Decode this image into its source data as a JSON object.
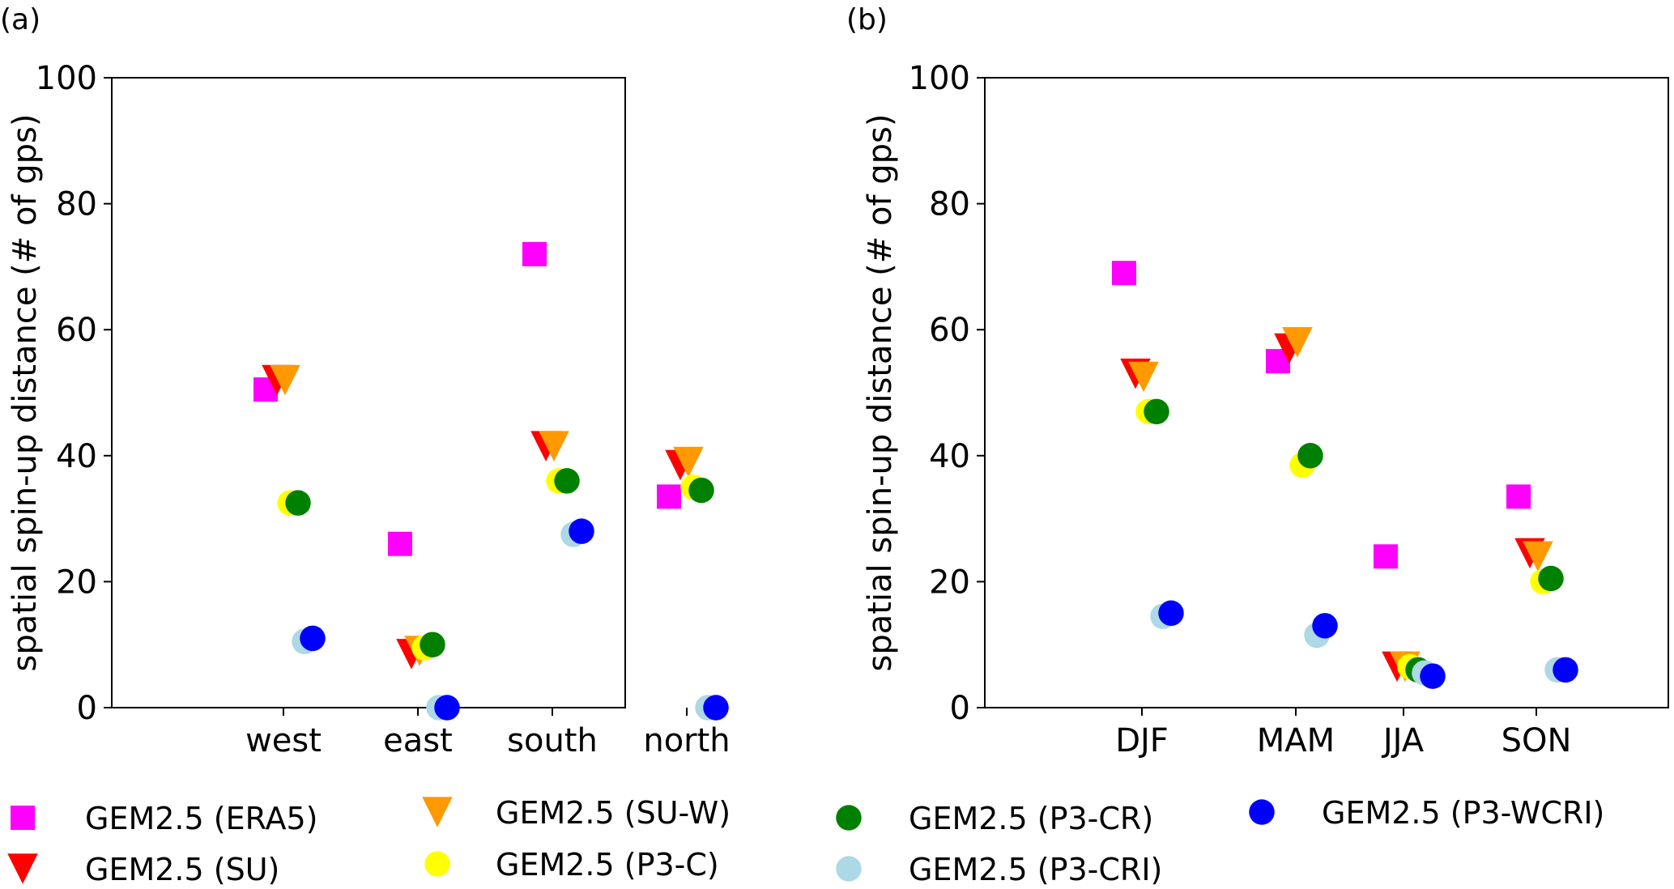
{
  "figure": {
    "panels": [
      {
        "panel_label": "(a)",
        "categories": [
          "west",
          "east",
          "south",
          "north"
        ]
      },
      {
        "panel_label": "(b)",
        "categories": [
          "DJF",
          "MAM",
          "JJA",
          "SON"
        ]
      }
    ]
  },
  "legend": {
    "entries": [
      {
        "label": "GEM2.5 (ERA5)",
        "color": "#ff00ff",
        "marker": "square"
      },
      {
        "label": "GEM2.5 (SU)",
        "color": "#ff0000",
        "marker": "triangle-down"
      },
      {
        "label": "GEM2.5 (SU-W)",
        "color": "#ff9900",
        "marker": "triangle-down"
      },
      {
        "label": "GEM2.5 (P3-C)",
        "color": "#ffff00",
        "marker": "circle"
      },
      {
        "label": "GEM2.5 (P3-CR)",
        "color": "#008000",
        "marker": "circle"
      },
      {
        "label": "GEM2.5 (P3-CRI)",
        "color": "#add8e6",
        "marker": "circle"
      },
      {
        "label": "GEM2.5 (P3-WCRI)",
        "color": "#0000ff",
        "marker": "circle"
      }
    ]
  },
  "chart_data": [
    {
      "type": "scatter",
      "panel": "(a)",
      "title": "",
      "xlabel": "",
      "ylabel": "spatial spin-up distance (# of gps)",
      "ylim": [
        0,
        100
      ],
      "yticks": [
        0,
        20,
        40,
        60,
        80,
        100
      ],
      "categories": [
        "west",
        "east",
        "south",
        "north"
      ],
      "series": [
        {
          "name": "GEM2.5 (ERA5)",
          "values": [
            50.5,
            26,
            72,
            33.5
          ]
        },
        {
          "name": "GEM2.5 (SU)",
          "values": [
            52,
            8.5,
            41.5,
            38.5
          ]
        },
        {
          "name": "GEM2.5 (SU-W)",
          "values": [
            52,
            9,
            41.5,
            39
          ]
        },
        {
          "name": "GEM2.5 (P3-C)",
          "values": [
            32.5,
            9.5,
            36,
            35
          ]
        },
        {
          "name": "GEM2.5 (P3-CR)",
          "values": [
            32.5,
            10,
            36,
            34.5
          ]
        },
        {
          "name": "GEM2.5 (P3-CRI)",
          "values": [
            10.5,
            0,
            27.5,
            0
          ]
        },
        {
          "name": "GEM2.5 (P3-WCRI)",
          "values": [
            11,
            0,
            28,
            0
          ]
        }
      ]
    },
    {
      "type": "scatter",
      "panel": "(b)",
      "title": "",
      "xlabel": "",
      "ylabel": "spatial spin-up distance (# of gps)",
      "ylim": [
        0,
        100
      ],
      "yticks": [
        0,
        20,
        40,
        60,
        80,
        100
      ],
      "categories": [
        "DJF",
        "MAM",
        "JJA",
        "SON"
      ],
      "series": [
        {
          "name": "GEM2.5 (ERA5)",
          "values": [
            69,
            55,
            24,
            33.5
          ]
        },
        {
          "name": "GEM2.5 (SU)",
          "values": [
            53,
            57,
            6.5,
            24.5
          ]
        },
        {
          "name": "GEM2.5 (SU-W)",
          "values": [
            52.5,
            58,
            6.5,
            24
          ]
        },
        {
          "name": "GEM2.5 (P3-C)",
          "values": [
            47,
            38.5,
            6.5,
            20
          ]
        },
        {
          "name": "GEM2.5 (P3-CR)",
          "values": [
            47,
            40,
            6,
            20.5
          ]
        },
        {
          "name": "GEM2.5 (P3-CRI)",
          "values": [
            14.5,
            11.5,
            5.5,
            6
          ]
        },
        {
          "name": "GEM2.5 (P3-WCRI)",
          "values": [
            15,
            13,
            5,
            6
          ]
        }
      ]
    }
  ]
}
